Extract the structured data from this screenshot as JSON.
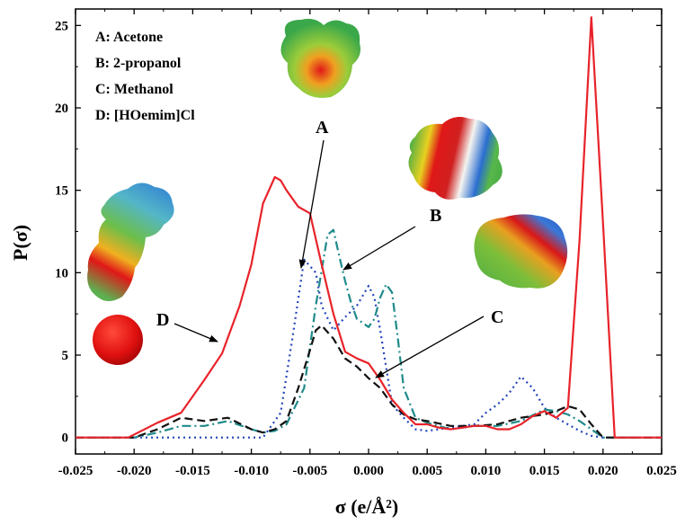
{
  "chart_data": {
    "type": "line",
    "xlabel": "σ (e/Å²)",
    "ylabel": "P(σ)",
    "xlim": [
      -0.025,
      0.025
    ],
    "ylim": [
      -1,
      26
    ],
    "x_ticks": [
      -0.025,
      -0.02,
      -0.015,
      -0.01,
      -0.005,
      0.0,
      0.005,
      0.01,
      0.015,
      0.02,
      0.025
    ],
    "x_tick_labels": [
      "-0.025",
      "-0.020",
      "-0.015",
      "-0.010",
      "-0.005",
      "0.000",
      "0.005",
      "0.010",
      "0.015",
      "0.020",
      "0.025"
    ],
    "y_ticks": [
      0,
      5,
      10,
      15,
      20,
      25
    ],
    "y_tick_labels": [
      "0",
      "5",
      "10",
      "15",
      "20",
      "25"
    ],
    "legend": {
      "placement": "top-left",
      "entries": [
        "A: Acetone",
        "B: 2-propanol",
        "C: Methanol",
        "D: [HOemim]Cl"
      ]
    },
    "callouts": [
      {
        "label": "A",
        "series": "A"
      },
      {
        "label": "B",
        "series": "B"
      },
      {
        "label": "C",
        "series": "C"
      },
      {
        "label": "D",
        "series": "D"
      }
    ],
    "series": [
      {
        "key": "A",
        "color": "#2244bb",
        "dash": "dot",
        "x": [
          -0.025,
          -0.009,
          -0.0075,
          -0.0065,
          -0.0055,
          -0.0045,
          -0.004,
          -0.003,
          -0.002,
          -0.001,
          0.0,
          0.0005,
          0.001,
          0.002,
          0.003,
          0.004,
          0.005,
          0.007,
          0.009,
          0.01,
          0.011,
          0.012,
          0.013,
          0.014,
          0.015,
          0.016,
          0.017,
          0.018,
          0.019,
          0.02,
          0.025
        ],
        "y": [
          0,
          0,
          1.5,
          6,
          10.8,
          10,
          8,
          6.5,
          7.3,
          8,
          9.2,
          8.5,
          6.5,
          2,
          1.2,
          0.5,
          0.4,
          0.6,
          0.8,
          1.5,
          2,
          2.7,
          3.7,
          3,
          1.8,
          1.2,
          0.8,
          0.4,
          0.1,
          0,
          0
        ]
      },
      {
        "key": "B",
        "color": "#1f8a8a",
        "dash": "dashdot",
        "x": [
          -0.025,
          -0.02,
          -0.018,
          -0.016,
          -0.014,
          -0.012,
          -0.01,
          -0.009,
          -0.008,
          -0.007,
          -0.0055,
          -0.0045,
          -0.0035,
          -0.003,
          -0.0025,
          -0.002,
          -0.0015,
          -0.001,
          0.0,
          0.0005,
          0.001,
          0.0015,
          0.002,
          0.0025,
          0.003,
          0.004,
          0.005,
          0.007,
          0.009,
          0.011,
          0.013,
          0.015,
          0.016,
          0.017,
          0.018,
          0.019,
          0.02,
          0.025
        ],
        "y": [
          0,
          0,
          0.3,
          0.7,
          0.7,
          1.0,
          0.5,
          0.3,
          0.4,
          0.8,
          3,
          8,
          12.3,
          12.6,
          11,
          9.5,
          8.2,
          7.2,
          6.7,
          7.2,
          8.5,
          9.3,
          8.8,
          6,
          3,
          1.2,
          0.9,
          0.5,
          0.7,
          0.7,
          1,
          1.7,
          1.6,
          1.4,
          1.0,
          0.5,
          0,
          0
        ]
      },
      {
        "key": "C",
        "color": "#111111",
        "dash": "dash",
        "x": [
          -0.025,
          -0.02,
          -0.018,
          -0.016,
          -0.014,
          -0.012,
          -0.01,
          -0.009,
          -0.008,
          -0.007,
          -0.006,
          -0.005,
          -0.0045,
          -0.004,
          -0.003,
          -0.002,
          -0.001,
          0.0,
          0.001,
          0.002,
          0.003,
          0.004,
          0.005,
          0.007,
          0.009,
          0.011,
          0.013,
          0.015,
          0.016,
          0.017,
          0.018,
          0.019,
          0.02,
          0.025
        ],
        "y": [
          0,
          0,
          0.5,
          1.2,
          1.0,
          1.2,
          0.5,
          0.3,
          0.5,
          1.0,
          3,
          5.3,
          6.5,
          6.8,
          6,
          4.8,
          4.3,
          3.6,
          3.0,
          2.0,
          1.4,
          1.1,
          1.0,
          0.7,
          0.7,
          0.8,
          1.2,
          1.4,
          1.6,
          1.9,
          1.7,
          0.8,
          0,
          0
        ]
      },
      {
        "key": "D",
        "color": "#e8232a",
        "dash": "solid",
        "x": [
          -0.025,
          -0.0205,
          -0.018,
          -0.016,
          -0.014,
          -0.0125,
          -0.011,
          -0.01,
          -0.009,
          -0.008,
          -0.0075,
          -0.007,
          -0.006,
          -0.005,
          -0.004,
          -0.003,
          -0.002,
          -0.001,
          0.0,
          0.001,
          0.002,
          0.003,
          0.004,
          0.005,
          0.006,
          0.007,
          0.008,
          0.009,
          0.01,
          0.011,
          0.012,
          0.013,
          0.014,
          0.015,
          0.016,
          0.017,
          0.018,
          0.019,
          0.02,
          0.021,
          0.025
        ],
        "y": [
          0,
          0,
          0.9,
          1.5,
          3.5,
          5.1,
          8,
          10.5,
          14.2,
          15.8,
          15.6,
          15.0,
          14.0,
          13.6,
          10.5,
          7.5,
          5.2,
          4.8,
          4.5,
          3.5,
          2.3,
          1.5,
          0.8,
          0.8,
          0.6,
          0.5,
          0.6,
          0.7,
          0.7,
          0.5,
          0.5,
          0.8,
          1.3,
          1.6,
          1.2,
          1.8,
          12,
          25.5,
          13,
          0,
          0
        ]
      }
    ]
  }
}
